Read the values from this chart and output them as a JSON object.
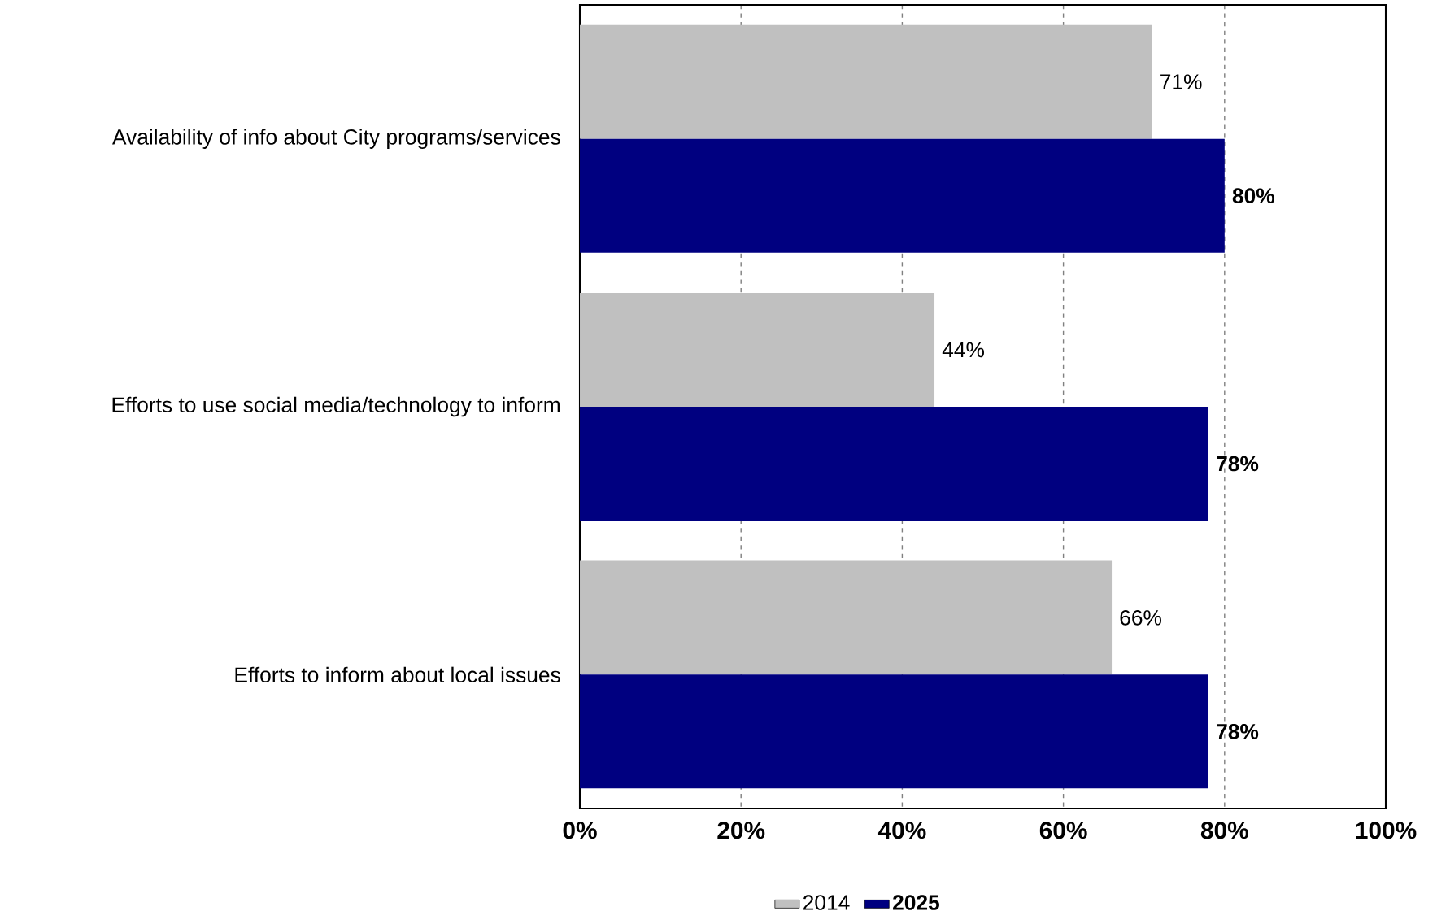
{
  "chart_data": {
    "type": "bar",
    "orientation": "horizontal",
    "categories": [
      "Availability of info about City programs/services",
      "Efforts to use social media/technology to inform",
      "Efforts to inform about local issues"
    ],
    "series": [
      {
        "name": "2014",
        "color": "#c0c0c0",
        "values": [
          71,
          44,
          66
        ],
        "value_labels": [
          "71%",
          "44%",
          "66%"
        ]
      },
      {
        "name": "2025",
        "color": "#000080",
        "values": [
          80,
          78,
          78
        ],
        "value_labels": [
          "80%",
          "78%",
          "78%"
        ]
      }
    ],
    "xlim": [
      0,
      100
    ],
    "xticks": [
      {
        "value": 0,
        "label": "0%"
      },
      {
        "value": 20,
        "label": "20%"
      },
      {
        "value": 40,
        "label": "40%"
      },
      {
        "value": 60,
        "label": "60%"
      },
      {
        "value": 80,
        "label": "80%"
      },
      {
        "value": 100,
        "label": "100%"
      }
    ],
    "grid": "x",
    "legend": "bottom"
  }
}
